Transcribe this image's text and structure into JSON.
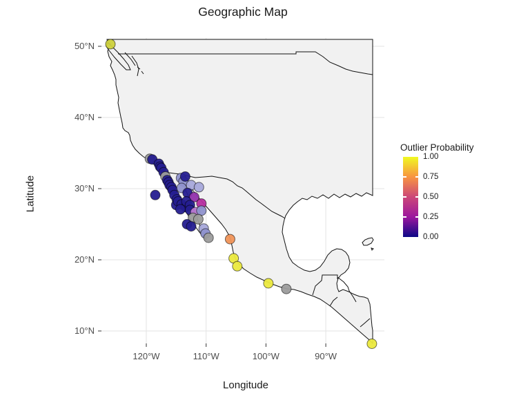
{
  "title": "Geographic Map",
  "axes": {
    "x_label": "Longitude",
    "y_label": "Latitude",
    "x_ticks": [
      {
        "label": "120°W",
        "lon": -120
      },
      {
        "label": "110°W",
        "lon": -110
      },
      {
        "label": "100°W",
        "lon": -100
      },
      {
        "label": "90°W",
        "lon": -90
      }
    ],
    "y_ticks": [
      {
        "label": "50°N",
        "lat": 50
      },
      {
        "label": "40°N",
        "lat": 40
      },
      {
        "label": "30°N",
        "lat": 30
      },
      {
        "label": "20°N",
        "lat": 20
      },
      {
        "label": "10°N",
        "lat": 10
      }
    ]
  },
  "legend": {
    "title": "Outlier Probability",
    "labels": [
      {
        "text": "1.00",
        "value": 1.0
      },
      {
        "text": "0.75",
        "value": 0.75
      },
      {
        "text": "0.50",
        "value": 0.5
      },
      {
        "text": "0.25",
        "value": 0.25
      },
      {
        "text": "0.00",
        "value": 0.0
      }
    ],
    "tick_values": [
      0.25,
      0.5,
      0.75
    ]
  },
  "colors": {
    "plasma_stops": [
      "#0d0887",
      "#9c179e",
      "#cc4778",
      "#f89441",
      "#f0f921"
    ],
    "gridline": "#e3e3e3",
    "tick_mark": "#333333",
    "tick_text": "#4d4d4d",
    "map_fill": "#f1f1f1",
    "map_outline": "#111111",
    "na_point": "#9c9c9c"
  },
  "chart_data": {
    "type": "scatter",
    "title": "Geographic Map",
    "xlabel": "Longitude",
    "ylabel": "Latitude",
    "xlim": [
      -127.5,
      -80.2
    ],
    "ylim": [
      7.9,
      51.2
    ],
    "grid": true,
    "legend_position": "right",
    "points": [
      {
        "lon": -119.4,
        "lat": 34.2,
        "prob": null,
        "color": "#9c9c9c"
      },
      {
        "lon": -119.0,
        "lat": 34.1,
        "prob": 0.03,
        "color": "#251d90"
      },
      {
        "lon": -117.9,
        "lat": 33.5,
        "prob": 0.02,
        "color": "#251d90"
      },
      {
        "lon": -117.7,
        "lat": 33.1,
        "prob": 0.03,
        "color": "#251d90"
      },
      {
        "lon": -117.5,
        "lat": 32.9,
        "prob": 0.04,
        "color": "#251d90"
      },
      {
        "lon": -117.1,
        "lat": 32.3,
        "prob": 0.03,
        "color": "#251d90"
      },
      {
        "lon": -116.8,
        "lat": 31.7,
        "prob": null,
        "color": "#9c9c9c"
      },
      {
        "lon": -116.5,
        "lat": 31.2,
        "prob": 0.02,
        "color": "#251d90"
      },
      {
        "lon": -116.3,
        "lat": 30.9,
        "prob": 0.02,
        "color": "#251d90"
      },
      {
        "lon": -116.1,
        "lat": 30.5,
        "prob": 0.03,
        "color": "#251d90"
      },
      {
        "lon": -115.8,
        "lat": 30.2,
        "prob": 0.03,
        "color": "#251d90"
      },
      {
        "lon": -115.6,
        "lat": 29.8,
        "prob": 0.02,
        "color": "#251d90"
      },
      {
        "lon": -115.3,
        "lat": 29.1,
        "prob": 0.04,
        "color": "#251d90"
      },
      {
        "lon": -114.9,
        "lat": 28.5,
        "prob": 0.03,
        "color": "#251d90"
      },
      {
        "lon": -118.5,
        "lat": 29.1,
        "prob": 0.02,
        "color": "#251d90"
      },
      {
        "lon": -114.2,
        "lat": 31.5,
        "prob": 0.15,
        "color": "#8f92ce"
      },
      {
        "lon": -113.8,
        "lat": 31.0,
        "prob": 0.12,
        "color": "#8f92ce"
      },
      {
        "lon": -113.5,
        "lat": 31.7,
        "prob": 0.03,
        "color": "#251d90"
      },
      {
        "lon": -112.5,
        "lat": 30.5,
        "prob": 0.2,
        "color": "#a7a8da"
      },
      {
        "lon": -111.2,
        "lat": 30.2,
        "prob": 0.22,
        "color": "#a7a8da"
      },
      {
        "lon": -114.1,
        "lat": 30.1,
        "prob": 0.15,
        "color": "#8f92ce"
      },
      {
        "lon": -113.1,
        "lat": 29.4,
        "prob": 0.04,
        "color": "#251d90"
      },
      {
        "lon": -112.0,
        "lat": 28.8,
        "prob": 0.35,
        "color": "#9232ac"
      },
      {
        "lon": -110.8,
        "lat": 27.9,
        "prob": 0.45,
        "color": "#b62da0"
      },
      {
        "lon": -115.0,
        "lat": 27.7,
        "prob": 0.02,
        "color": "#251d90"
      },
      {
        "lon": -114.7,
        "lat": 28.2,
        "prob": 0.02,
        "color": "#251d90"
      },
      {
        "lon": -114.1,
        "lat": 27.8,
        "prob": 0.03,
        "color": "#251d90"
      },
      {
        "lon": -113.4,
        "lat": 27.4,
        "prob": 0.02,
        "color": "#251d90"
      },
      {
        "lon": -113.3,
        "lat": 28.2,
        "prob": 0.03,
        "color": "#251d90"
      },
      {
        "lon": -112.7,
        "lat": 27.7,
        "prob": 0.02,
        "color": "#251d90"
      },
      {
        "lon": -112.7,
        "lat": 27.0,
        "prob": 0.04,
        "color": "#251d90"
      },
      {
        "lon": -114.3,
        "lat": 27.1,
        "prob": 0.03,
        "color": "#251d90"
      },
      {
        "lon": -111.8,
        "lat": 26.7,
        "prob": 0.32,
        "color": "#bb79d2"
      },
      {
        "lon": -110.8,
        "lat": 26.9,
        "prob": 0.18,
        "color": "#8f92ce"
      },
      {
        "lon": -112.2,
        "lat": 25.9,
        "prob": null,
        "color": "#9c9c9c"
      },
      {
        "lon": -111.3,
        "lat": 25.7,
        "prob": null,
        "color": "#9c9c9c"
      },
      {
        "lon": -113.2,
        "lat": 25.0,
        "prob": 0.02,
        "color": "#251d90"
      },
      {
        "lon": -112.5,
        "lat": 24.7,
        "prob": 0.03,
        "color": "#251d90"
      },
      {
        "lon": -110.4,
        "lat": 24.4,
        "prob": 0.2,
        "color": "#a7a8da"
      },
      {
        "lon": -110.1,
        "lat": 23.7,
        "prob": 0.17,
        "color": "#8f92ce"
      },
      {
        "lon": -109.6,
        "lat": 23.1,
        "prob": null,
        "color": "#9c9c9c"
      },
      {
        "lon": -106.0,
        "lat": 22.9,
        "prob": 0.78,
        "color": "#f09358"
      },
      {
        "lon": -105.4,
        "lat": 20.2,
        "prob": 0.95,
        "color": "#ebe93e"
      },
      {
        "lon": -104.8,
        "lat": 19.1,
        "prob": 0.96,
        "color": "#ebe93e"
      },
      {
        "lon": -99.6,
        "lat": 16.7,
        "prob": 0.93,
        "color": "#ebe93e"
      },
      {
        "lon": -96.6,
        "lat": 15.9,
        "prob": null,
        "color": "#9c9c9c"
      },
      {
        "lon": -82.3,
        "lat": 8.2,
        "prob": 0.97,
        "color": "#ebe93e"
      },
      {
        "lon": -126.0,
        "lat": 50.3,
        "prob": 0.9,
        "color": "#ccd03c"
      }
    ]
  }
}
